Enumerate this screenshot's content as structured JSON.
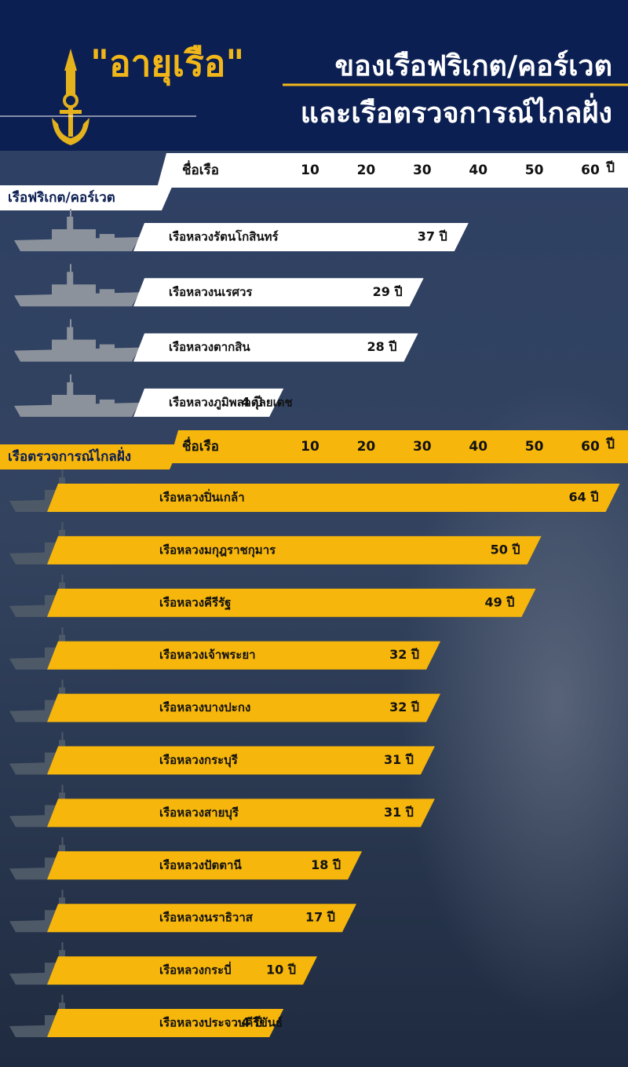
{
  "header": {
    "title_quote": "\"อายุเรือ\"",
    "title_line1": "ของเรือฟริเกต/คอร์เวต",
    "title_line2": "และเรือตรวจการณ์ไกลฝั่ง"
  },
  "chart_data": [
    {
      "type": "hbar",
      "title": "เรือฟริเกต/คอร์เวต",
      "axis_name": "ชื่อเรือ",
      "unit_label": "ปี",
      "color": "#ffffff",
      "categories": [
        "เรือหลวงรัตนโกสินทร์",
        "เรือหลวงนเรศวร",
        "เรือหลวงตากสิน",
        "เรือหลวงภูมิพลอดุลยเดช"
      ],
      "values": [
        37,
        29,
        28,
        4
      ],
      "value_labels": [
        "37 ปี",
        "29 ปี",
        "28 ปี",
        "4 ปี"
      ],
      "xlim": [
        0,
        65
      ],
      "xticks": [
        10,
        20,
        30,
        40,
        50,
        60
      ]
    },
    {
      "type": "hbar",
      "title": "เรือตรวจการณ์ไกลฝั่ง",
      "axis_name": "ชื่อเรือ",
      "unit_label": "ปี",
      "color": "#f6b60b",
      "categories": [
        "เรือหลวงปิ่นเกล้า",
        "เรือหลวงมกุฎราชกุมาร",
        "เรือหลวงคีรีรัฐ",
        "เรือหลวงเจ้าพระยา",
        "เรือหลวงบางปะกง",
        "เรือหลวงกระบุรี",
        "เรือหลวงสายบุรี",
        "เรือหลวงปัตตานี",
        "เรือหลวงนราธิวาส",
        "เรือหลวงกระบี่",
        "เรือหลวงประจวบคีรีขันธ์"
      ],
      "values": [
        64,
        50,
        49,
        32,
        32,
        31,
        31,
        18,
        17,
        10,
        4
      ],
      "value_labels": [
        "64 ปี",
        "50 ปี",
        "49 ปี",
        "32 ปี",
        "32 ปี",
        "31 ปี",
        "31 ปี",
        "18 ปี",
        "17 ปี",
        "10 ปี",
        "4 ปี"
      ],
      "xlim": [
        0,
        65
      ],
      "xticks": [
        10,
        20,
        30,
        40,
        50,
        60
      ]
    }
  ]
}
